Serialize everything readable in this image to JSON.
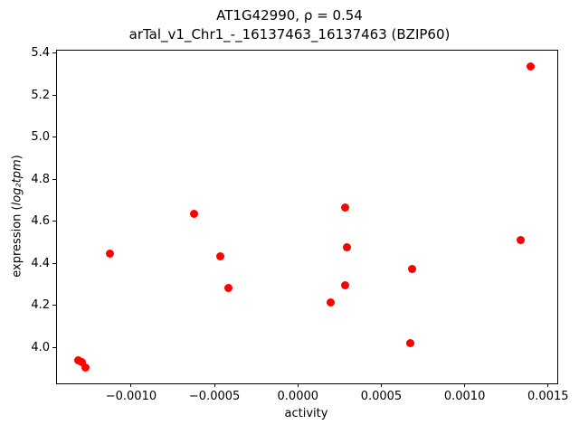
{
  "chart_data": {
    "type": "scatter",
    "title_line1": "AT1G42990, ρ = 0.54",
    "title_line2": "arTal_v1_Chr1_-_16137463_16137463 (BZIP60)",
    "xlabel": "activity",
    "ylabel_prefix": "expression (",
    "ylabel_math": "log₂tpm",
    "ylabel_suffix": ")",
    "xlim": [
      -0.00145,
      0.00155
    ],
    "ylim": [
      3.835,
      5.415
    ],
    "grid": false,
    "legend_position": "none",
    "marker_color": "#ff0000",
    "xticks": {
      "values": [
        -0.001,
        -0.0005,
        0.0,
        0.0005,
        0.001,
        0.0015
      ],
      "labels": [
        "−0.0010",
        "−0.0005",
        "0.0000",
        "0.0005",
        "0.0010",
        "0.0015"
      ]
    },
    "yticks": {
      "values": [
        4.0,
        4.2,
        4.4,
        4.6,
        4.8,
        5.0,
        5.2,
        5.4
      ],
      "labels": [
        "4.0",
        "4.2",
        "4.4",
        "4.6",
        "4.8",
        "5.0",
        "5.2",
        "5.4"
      ]
    },
    "points": [
      {
        "x": -0.00132,
        "y": 3.945
      },
      {
        "x": -0.0013,
        "y": 3.935
      },
      {
        "x": -0.00128,
        "y": 3.91
      },
      {
        "x": -0.00113,
        "y": 4.45
      },
      {
        "x": -0.00063,
        "y": 4.64
      },
      {
        "x": -0.00047,
        "y": 4.44
      },
      {
        "x": -0.00042,
        "y": 4.29
      },
      {
        "x": 0.00019,
        "y": 4.22
      },
      {
        "x": 0.00028,
        "y": 4.67
      },
      {
        "x": 0.00029,
        "y": 4.48
      },
      {
        "x": 0.00028,
        "y": 4.3
      },
      {
        "x": 0.00067,
        "y": 4.025
      },
      {
        "x": 0.00068,
        "y": 4.38
      },
      {
        "x": 0.00133,
        "y": 4.515
      },
      {
        "x": 0.00139,
        "y": 5.34
      }
    ]
  }
}
